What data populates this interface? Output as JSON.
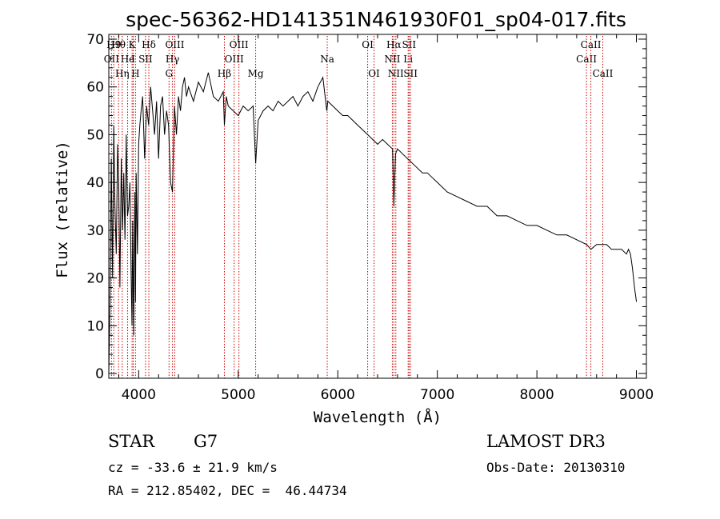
{
  "chart_data": {
    "type": "line",
    "title": "spec-56362-HD141351N461930F01_sp04-017.fits",
    "xlabel": "Wavelength (Å)",
    "ylabel": "Flux (relative)",
    "xlim": [
      3700,
      9100
    ],
    "ylim": [
      -1,
      71
    ],
    "xticks": [
      4000,
      5000,
      6000,
      7000,
      8000,
      9000
    ],
    "yticks": [
      0,
      10,
      20,
      30,
      40,
      50,
      60,
      70
    ],
    "line_color": "#000000",
    "marker_color": "#cc0000",
    "series": [
      {
        "name": "flux",
        "x": [
          3700,
          3712,
          3725,
          3738,
          3750,
          3762,
          3775,
          3788,
          3800,
          3812,
          3825,
          3838,
          3850,
          3862,
          3875,
          3888,
          3900,
          3912,
          3925,
          3933,
          3940,
          3950,
          3962,
          3968,
          3975,
          3988,
          4000,
          4012,
          4025,
          4040,
          4060,
          4080,
          4100,
          4120,
          4140,
          4160,
          4180,
          4200,
          4220,
          4240,
          4260,
          4280,
          4300,
          4320,
          4340,
          4360,
          4380,
          4400,
          4420,
          4440,
          4460,
          4480,
          4500,
          4550,
          4600,
          4650,
          4700,
          4750,
          4800,
          4850,
          4861,
          4880,
          4900,
          4950,
          5000,
          5050,
          5100,
          5150,
          5175,
          5200,
          5250,
          5300,
          5350,
          5400,
          5450,
          5500,
          5550,
          5600,
          5650,
          5700,
          5750,
          5800,
          5850,
          5890,
          5900,
          5950,
          6000,
          6050,
          6100,
          6150,
          6200,
          6250,
          6300,
          6350,
          6400,
          6450,
          6500,
          6550,
          6563,
          6580,
          6600,
          6650,
          6700,
          6750,
          6800,
          6850,
          6900,
          6950,
          7000,
          7100,
          7200,
          7300,
          7400,
          7500,
          7600,
          7700,
          7800,
          7900,
          8000,
          8100,
          8200,
          8300,
          8400,
          8500,
          8542,
          8600,
          8662,
          8700,
          8750,
          8800,
          8850,
          8900,
          8920,
          8940,
          8960,
          8980,
          9000
        ],
        "values": [
          0,
          15,
          45,
          20,
          52,
          35,
          25,
          48,
          40,
          18,
          45,
          30,
          42,
          28,
          50,
          33,
          35,
          40,
          20,
          10,
          32,
          8,
          38,
          15,
          42,
          25,
          48,
          52,
          55,
          58,
          45,
          56,
          52,
          60,
          55,
          50,
          57,
          45,
          56,
          58,
          50,
          55,
          52,
          40,
          38,
          56,
          50,
          58,
          55,
          60,
          62,
          58,
          60,
          57,
          61,
          59,
          63,
          58,
          57,
          59,
          52,
          58,
          56,
          55,
          54,
          56,
          55,
          56,
          44,
          53,
          55,
          56,
          55,
          57,
          56,
          57,
          58,
          56,
          58,
          59,
          57,
          60,
          62,
          55,
          57,
          56,
          55,
          54,
          54,
          53,
          52,
          51,
          50,
          49,
          48,
          49,
          48,
          47,
          35,
          46,
          47,
          46,
          45,
          44,
          43,
          42,
          42,
          41,
          40,
          38,
          37,
          36,
          35,
          35,
          33,
          33,
          32,
          31,
          31,
          30,
          29,
          29,
          28,
          27,
          26,
          27,
          27,
          27,
          26,
          26,
          26,
          25,
          26,
          25,
          22,
          18,
          15
        ]
      }
    ]
  },
  "line_markers": [
    {
      "label": "OII",
      "wavelength": 3727,
      "row": 1
    },
    {
      "label": "H9",
      "wavelength": 3750,
      "row": 0
    },
    {
      "label": "Hθ",
      "wavelength": 3798,
      "row": 0
    },
    {
      "label": "Hη",
      "wavelength": 3835,
      "row": 2
    },
    {
      "label": "He",
      "wavelength": 3889,
      "row": 1
    },
    {
      "label": "K",
      "wavelength": 3934,
      "row": 0
    },
    {
      "label": "I",
      "wavelength": 3945,
      "row": 1
    },
    {
      "label": "H",
      "wavelength": 3968,
      "row": 2
    },
    {
      "label": "SII",
      "wavelength": 4069,
      "row": 1
    },
    {
      "label": "Hδ",
      "wavelength": 4102,
      "row": 0
    },
    {
      "label": "G",
      "wavelength": 4305,
      "row": 2
    },
    {
      "label": "Hγ",
      "wavelength": 4340,
      "row": 1
    },
    {
      "label": "OIII",
      "wavelength": 4363,
      "row": 0
    },
    {
      "label": "Hβ",
      "wavelength": 4861,
      "row": 2
    },
    {
      "label": "OIII",
      "wavelength": 4959,
      "row": 1
    },
    {
      "label": "OIII",
      "wavelength": 5007,
      "row": 0
    },
    {
      "label": "Mg",
      "wavelength": 5175,
      "row": 2
    },
    {
      "label": "Na",
      "wavelength": 5894,
      "row": 1
    },
    {
      "label": "OI",
      "wavelength": 6300,
      "row": 0
    },
    {
      "label": "OI",
      "wavelength": 6364,
      "row": 2
    },
    {
      "label": "NII",
      "wavelength": 6548,
      "row": 1
    },
    {
      "label": "Hα",
      "wavelength": 6563,
      "row": 0
    },
    {
      "label": "NII",
      "wavelength": 6583,
      "row": 2
    },
    {
      "label": "Li",
      "wavelength": 6707,
      "row": 1
    },
    {
      "label": "SII",
      "wavelength": 6716,
      "row": 0
    },
    {
      "label": "SII",
      "wavelength": 6731,
      "row": 2
    },
    {
      "label": "CaII",
      "wavelength": 8498,
      "row": 1
    },
    {
      "label": "CaII",
      "wavelength": 8542,
      "row": 0
    },
    {
      "label": "CaII",
      "wavelength": 8662,
      "row": 2
    }
  ],
  "info": {
    "object_type": "STAR",
    "subclass": "G7",
    "survey": "LAMOST DR3",
    "cz": "cz = -33.6 ± 21.9 km/s",
    "obs_date": "Obs-Date: 20130310",
    "coords": "RA = 212.85402, DEC =  46.44734"
  }
}
